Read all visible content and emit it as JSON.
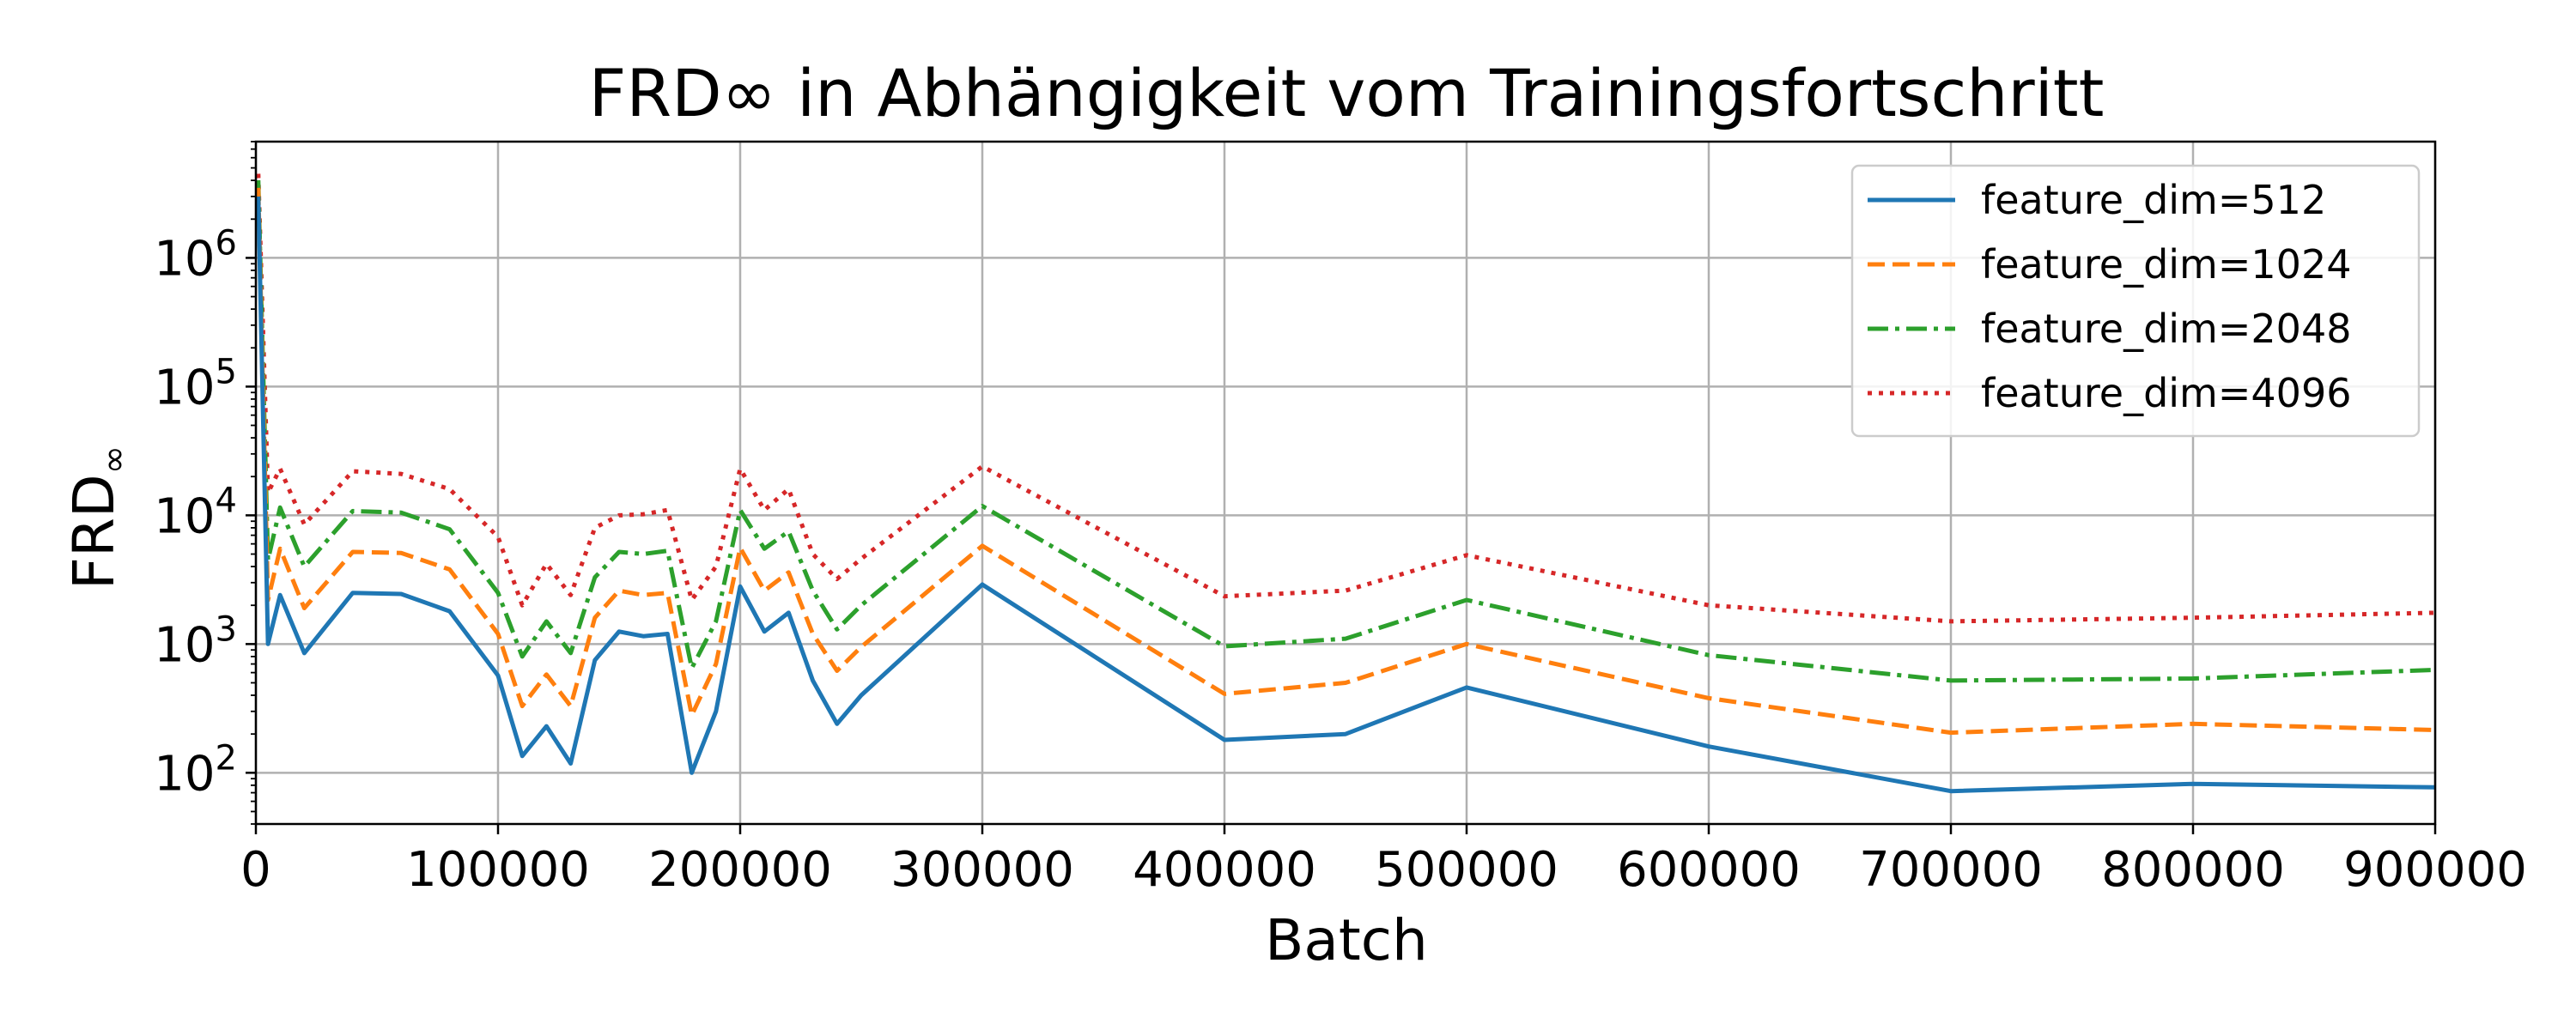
{
  "chart_data": {
    "type": "line",
    "title": "FRD∞ in Abhängigkeit vom Trainingsfortschritt",
    "xlabel": "Batch",
    "ylabel": "FRD",
    "ylabel_subscript": "∞",
    "x_scale": "linear",
    "y_scale": "log",
    "xlim": [
      0,
      900000
    ],
    "ylim": [
      40,
      8000000
    ],
    "x_ticks": [
      "0",
      "100000",
      "200000",
      "300000",
      "400000",
      "500000",
      "600000",
      "700000",
      "800000",
      "900000"
    ],
    "y_ticks": [
      {
        "base": "10",
        "exp": "2"
      },
      {
        "base": "10",
        "exp": "3"
      },
      {
        "base": "10",
        "exp": "4"
      },
      {
        "base": "10",
        "exp": "5"
      },
      {
        "base": "10",
        "exp": "6"
      }
    ],
    "grid": true,
    "legend_position": "top-right",
    "x": [
      1000,
      5000,
      10000,
      20000,
      40000,
      60000,
      80000,
      100000,
      110000,
      120000,
      130000,
      140000,
      150000,
      160000,
      170000,
      180000,
      190000,
      200000,
      210000,
      220000,
      230000,
      240000,
      250000,
      300000,
      400000,
      450000,
      500000,
      600000,
      700000,
      800000,
      900000
    ],
    "series": [
      {
        "name": "feature_dim=512",
        "color": "#1f77b4",
        "style": "solid",
        "values": [
          3000000,
          1000,
          2400,
          850,
          2500,
          2450,
          1800,
          570,
          135,
          230,
          118,
          750,
          1250,
          1150,
          1200,
          100,
          300,
          2800,
          1250,
          1750,
          520,
          240,
          400,
          2900,
          180,
          200,
          460,
          160,
          72,
          82,
          77
        ]
      },
      {
        "name": "feature_dim=1024",
        "color": "#ff7f0e",
        "style": "dashed",
        "values": [
          3500000,
          2200,
          5500,
          1900,
          5200,
          5100,
          3800,
          1200,
          330,
          580,
          330,
          1600,
          2600,
          2400,
          2500,
          280,
          700,
          5600,
          2600,
          3600,
          1200,
          620,
          950,
          5800,
          410,
          500,
          1000,
          380,
          205,
          240,
          215
        ]
      },
      {
        "name": "feature_dim=2048",
        "color": "#2ca02c",
        "style": "dashdot",
        "values": [
          4000000,
          4500,
          11500,
          4000,
          10800,
          10500,
          7800,
          2500,
          800,
          1500,
          850,
          3300,
          5200,
          5000,
          5300,
          650,
          1500,
          11000,
          5500,
          7500,
          2600,
          1300,
          2000,
          11800,
          960,
          1100,
          2200,
          820,
          520,
          540,
          630
        ]
      },
      {
        "name": "feature_dim=4096",
        "color": "#d62728",
        "style": "dotted",
        "values": [
          4500000,
          15000,
          23000,
          8500,
          22000,
          21000,
          16000,
          6800,
          2000,
          4200,
          2400,
          8000,
          10000,
          10200,
          11000,
          2200,
          4000,
          23000,
          11000,
          16000,
          5000,
          3200,
          4600,
          24000,
          2350,
          2600,
          4900,
          2000,
          1500,
          1600,
          1750
        ]
      }
    ]
  }
}
